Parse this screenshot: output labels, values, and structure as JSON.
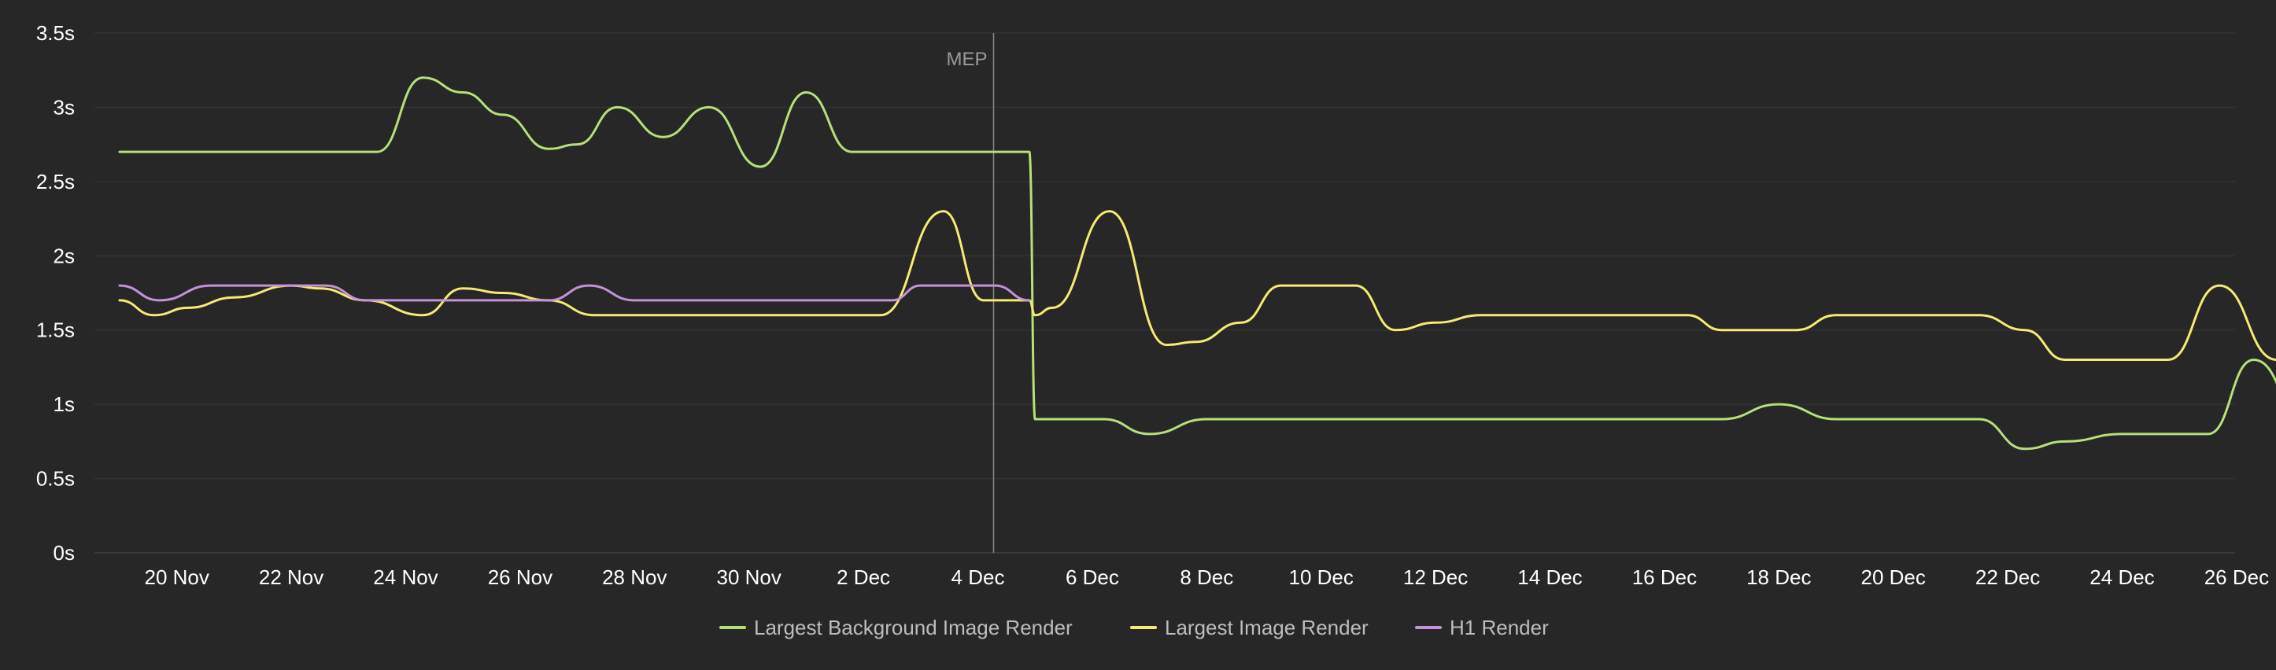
{
  "chart_data": {
    "type": "line",
    "title": "",
    "xlabel": "",
    "ylabel": "",
    "x": [
      "19 Nov",
      "20 Nov",
      "21 Nov",
      "22 Nov",
      "23 Nov",
      "24 Nov",
      "25 Nov",
      "26 Nov",
      "27 Nov",
      "28 Nov",
      "29 Nov",
      "30 Nov",
      "1 Dec",
      "2 Dec",
      "3 Dec",
      "4 Dec",
      "5 Dec",
      "6 Dec",
      "7 Dec",
      "8 Dec",
      "9 Dec",
      "10 Dec",
      "11 Dec",
      "12 Dec",
      "13 Dec",
      "14 Dec",
      "15 Dec",
      "16 Dec",
      "17 Dec",
      "18 Dec",
      "19 Dec",
      "20 Dec",
      "21 Dec",
      "22 Dec",
      "23 Dec",
      "24 Dec",
      "25 Dec",
      "26 Dec"
    ],
    "x_ticks": [
      "20 Nov",
      "22 Nov",
      "24 Nov",
      "26 Nov",
      "28 Nov",
      "30 Nov",
      "2 Dec",
      "4 Dec",
      "6 Dec",
      "8 Dec",
      "10 Dec",
      "12 Dec",
      "14 Dec",
      "16 Dec",
      "18 Dec",
      "20 Dec",
      "22 Dec",
      "24 Dec",
      "26 Dec"
    ],
    "y_ticks": [
      "0s",
      "0.5s",
      "1s",
      "1.5s",
      "2s",
      "2.5s",
      "3s",
      "3.5s"
    ],
    "ylim": [
      0,
      3.5
    ],
    "y_unit": "s",
    "grid": true,
    "legend_position": "bottom-center",
    "annotations": [
      {
        "label": "MEP",
        "x": "4 Dec",
        "type": "vertical-line"
      }
    ],
    "series": [
      {
        "name": "Largest Background Image Render",
        "color": "#b5e07a",
        "points": [
          [
            "19 Nov",
            2.7
          ],
          [
            "20 Nov",
            2.7
          ],
          [
            "21 Nov",
            2.7
          ],
          [
            "22 Nov",
            2.7
          ],
          [
            "23 Nov",
            2.7
          ],
          [
            "23.5 Nov",
            2.7
          ],
          [
            "24.3 Nov",
            3.2
          ],
          [
            "25 Nov",
            3.1
          ],
          [
            "25.7 Nov",
            2.95
          ],
          [
            "26.5 Nov",
            2.72
          ],
          [
            "27 Nov",
            2.75
          ],
          [
            "27.7 Nov",
            3.0
          ],
          [
            "28.5 Nov",
            2.8
          ],
          [
            "29.3 Nov",
            3.0
          ],
          [
            "30.2 Nov",
            2.6
          ],
          [
            "31 Nov",
            3.1
          ],
          [
            "31.8 Nov",
            2.7
          ],
          [
            "33 Nov",
            2.7
          ],
          [
            "34 Nov",
            2.7
          ],
          [
            "34.9 Nov",
            2.7
          ],
          [
            "35 Nov",
            0.9
          ],
          [
            "36 Nov",
            0.9
          ],
          [
            "36.2 Nov",
            0.9
          ],
          [
            "37 Nov",
            0.8
          ],
          [
            "38 Nov",
            0.9
          ],
          [
            "39 Nov",
            0.9
          ],
          [
            "40 Nov",
            0.9
          ],
          [
            "41 Nov",
            0.9
          ],
          [
            "42 Nov",
            0.9
          ],
          [
            "43 Nov",
            0.9
          ],
          [
            "44 Nov",
            0.9
          ],
          [
            "45 Nov",
            0.9
          ],
          [
            "46 Nov",
            0.9
          ],
          [
            "47 Nov",
            0.9
          ],
          [
            "48 Nov",
            1.0
          ],
          [
            "49 Nov",
            0.9
          ],
          [
            "50 Nov",
            0.9
          ],
          [
            "51 Nov",
            0.9
          ],
          [
            "51.5 Nov",
            0.9
          ],
          [
            "52.3 Nov",
            0.7
          ],
          [
            "53 Nov",
            0.75
          ],
          [
            "54 Nov",
            0.8
          ],
          [
            "55 Nov",
            0.8
          ],
          [
            "55.5 Nov",
            0.8
          ],
          [
            "56.3 Nov",
            1.3
          ],
          [
            "57.3 Nov",
            0.8
          ],
          [
            "58.3 Nov",
            1.0
          ],
          [
            "59.2 Nov",
            0.9
          ]
        ]
      },
      {
        "name": "Largest Image Render",
        "color": "#f5ea72",
        "points": [
          [
            "19 Nov",
            1.7
          ],
          [
            "19.6 Nov",
            1.6
          ],
          [
            "20.2 Nov",
            1.65
          ],
          [
            "21 Nov",
            1.72
          ],
          [
            "22 Nov",
            1.8
          ],
          [
            "22.5 Nov",
            1.78
          ],
          [
            "23.3 Nov",
            1.7
          ],
          [
            "24.3 Nov",
            1.6
          ],
          [
            "25 Nov",
            1.78
          ],
          [
            "25.7 Nov",
            1.75
          ],
          [
            "26.5 Nov",
            1.7
          ],
          [
            "27.3 Nov",
            1.6
          ],
          [
            "28 Nov",
            1.6
          ],
          [
            "29 Nov",
            1.6
          ],
          [
            "30 Nov",
            1.6
          ],
          [
            "31 Nov",
            1.6
          ],
          [
            "32.3 Nov",
            1.6
          ],
          [
            "33.4 Nov",
            2.3
          ],
          [
            "34.1 Nov",
            1.7
          ],
          [
            "34.9 Nov",
            1.7
          ],
          [
            "35 Nov",
            1.6
          ],
          [
            "35.3 Nov",
            1.65
          ],
          [
            "36.3 Nov",
            2.3
          ],
          [
            "37.3 Nov",
            1.4
          ],
          [
            "37.8 Nov",
            1.42
          ],
          [
            "38.6 Nov",
            1.55
          ],
          [
            "39.3 Nov",
            1.8
          ],
          [
            "40 Nov",
            1.8
          ],
          [
            "40.6 Nov",
            1.8
          ],
          [
            "41.3 Nov",
            1.5
          ],
          [
            "42 Nov",
            1.55
          ],
          [
            "42.8 Nov",
            1.6
          ],
          [
            "44 Nov",
            1.6
          ],
          [
            "45 Nov",
            1.6
          ],
          [
            "46.4 Nov",
            1.6
          ],
          [
            "47 Nov",
            1.5
          ],
          [
            "48.3 Nov",
            1.5
          ],
          [
            "49 Nov",
            1.6
          ],
          [
            "50 Nov",
            1.6
          ],
          [
            "51 Nov",
            1.6
          ],
          [
            "51.5 Nov",
            1.6
          ],
          [
            "52.3 Nov",
            1.5
          ],
          [
            "53 Nov",
            1.3
          ],
          [
            "54 Nov",
            1.3
          ],
          [
            "54.8 Nov",
            1.3
          ],
          [
            "55.7 Nov",
            1.8
          ],
          [
            "56.7 Nov",
            1.3
          ],
          [
            "57.5 Nov",
            1.4
          ],
          [
            "58.3 Nov",
            1.38
          ],
          [
            "59.2 Nov",
            1.3
          ]
        ]
      },
      {
        "name": "H1 Render",
        "color": "#c592d9",
        "points": [
          [
            "19 Nov",
            1.8
          ],
          [
            "19.7 Nov",
            1.7
          ],
          [
            "20.6 Nov",
            1.8
          ],
          [
            "22 Nov",
            1.8
          ],
          [
            "22.6 Nov",
            1.8
          ],
          [
            "23.3 Nov",
            1.7
          ],
          [
            "24 Nov",
            1.7
          ],
          [
            "25 Nov",
            1.7
          ],
          [
            "26 Nov",
            1.7
          ],
          [
            "26.5 Nov",
            1.7
          ],
          [
            "27.2 Nov",
            1.8
          ],
          [
            "28 Nov",
            1.7
          ],
          [
            "29 Nov",
            1.7
          ],
          [
            "30 Nov",
            1.7
          ],
          [
            "31 Nov",
            1.7
          ],
          [
            "32 Nov",
            1.7
          ],
          [
            "32.5 Nov",
            1.7
          ],
          [
            "33 Nov",
            1.8
          ],
          [
            "34 Nov",
            1.8
          ],
          [
            "34.3 Nov",
            1.8
          ],
          [
            "34.9 Nov",
            1.7
          ]
        ]
      }
    ]
  }
}
